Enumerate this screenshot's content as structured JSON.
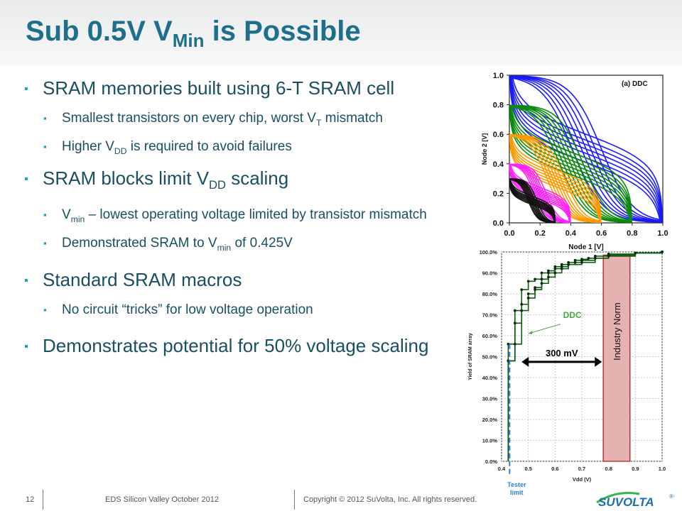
{
  "slide": {
    "title_main": "Sub 0.5V V",
    "title_sub": "Min",
    "title_end": " is Possible"
  },
  "bullets": [
    {
      "level": 1,
      "parts": [
        {
          "t": "SRAM memories built using 6-T SRAM cell"
        }
      ]
    },
    {
      "level": 2,
      "parts": [
        {
          "t": "Smallest transistors on every chip, worst V"
        },
        {
          "t": "T",
          "sub": true
        },
        {
          "t": " mismatch"
        }
      ]
    },
    {
      "level": 2,
      "parts": [
        {
          "t": "Higher V"
        },
        {
          "t": "DD",
          "sub": true
        },
        {
          "t": " is required to avoid failures"
        }
      ]
    },
    {
      "level": 1,
      "parts": [
        {
          "t": "SRAM blocks limit V"
        },
        {
          "t": "DD",
          "sub": true
        },
        {
          "t": " scaling"
        }
      ]
    },
    {
      "level": 2,
      "parts": [
        {
          "t": "V"
        },
        {
          "t": "min",
          "sub": true
        },
        {
          "t": " – lowest operating voltage limited by transistor mismatch"
        }
      ]
    },
    {
      "level": 2,
      "parts": [
        {
          "t": "Demonstrated SRAM to V"
        },
        {
          "t": "min",
          "sub": true
        },
        {
          "t": " of 0.425V"
        }
      ]
    },
    {
      "level": 1,
      "parts": [
        {
          "t": "Standard SRAM macros"
        }
      ]
    },
    {
      "level": 2,
      "parts": [
        {
          "t": "No circuit “tricks” for low voltage operation"
        }
      ]
    },
    {
      "level": 1,
      "parts": [
        {
          "t": "Demonstrates potential for 50% voltage scaling"
        }
      ]
    }
  ],
  "footer": {
    "page": "12",
    "event": "EDS Silicon Valley October 2012",
    "copyright": "Copyright © 2012 SuVolta, Inc. All rights reserved."
  },
  "logo": {
    "text": "SUVOLTA",
    "mark": "®"
  },
  "chart_data": [
    {
      "type": "line",
      "title": "(a) DDC",
      "xlabel": "Node 1 [V]",
      "ylabel": "Node 2 [V]",
      "xlim": [
        0,
        1.0
      ],
      "ylim": [
        0,
        1.0
      ],
      "x_ticks": [
        "0.0",
        "0.2",
        "0.4",
        "0.6",
        "0.8",
        "1.0"
      ],
      "y_ticks": [
        "0.0",
        "0.2",
        "0.4",
        "0.6",
        "0.8",
        "1.0"
      ],
      "grid": false,
      "series": [
        {
          "color": "#1a1aff",
          "vdd": 1.0
        },
        {
          "color": "#0a8a0a",
          "vdd": 0.8
        },
        {
          "color": "#ff9900",
          "vdd": 0.6
        },
        {
          "color": "#ff22ff",
          "vdd": 0.4
        },
        {
          "color": "#111111",
          "vdd": 0.3
        }
      ]
    },
    {
      "type": "line",
      "xlabel": "Vdd (V)",
      "ylabel": "Yield of SRAM array",
      "xlim": [
        0.4,
        1.0
      ],
      "ylim": [
        0,
        100
      ],
      "x_ticks": [
        "0.4",
        "0.5",
        "0.6",
        "0.7",
        "0.8",
        "0.9",
        "1.0"
      ],
      "y_ticks": [
        "0.0%",
        "10.0%",
        "20.0%",
        "30.0%",
        "40.0%",
        "50.0%",
        "60.0%",
        "70.0%",
        "80.0%",
        "90.0%",
        "100.0%"
      ],
      "grid": true,
      "series": [
        {
          "color": "#0f5c0f",
          "x": [
            0.425,
            0.45,
            0.475,
            0.5,
            0.525,
            0.55,
            0.575,
            0.6,
            0.625,
            0.65,
            0.675,
            0.7,
            0.725,
            0.75,
            0.8,
            0.9,
            1.0
          ],
          "y": [
            48,
            72,
            82,
            86,
            87,
            90,
            91,
            93,
            94,
            95,
            96,
            96.5,
            97,
            98,
            99,
            99.5,
            100
          ]
        },
        {
          "color": "#0f5c0f",
          "x": [
            0.425,
            0.45,
            0.475,
            0.5,
            0.525,
            0.55,
            0.575,
            0.6,
            0.625,
            0.65,
            0.675,
            0.7,
            0.75,
            0.8,
            0.9,
            1.0
          ],
          "y": [
            56,
            66,
            75,
            80,
            83,
            87,
            90,
            92,
            93,
            94,
            95,
            96,
            97,
            98.5,
            99.5,
            100
          ]
        },
        {
          "color": "#0f5c0f",
          "x": [
            0.425,
            0.45,
            0.475,
            0.5,
            0.525,
            0.55,
            0.575,
            0.6,
            0.625,
            0.65,
            0.7,
            0.75,
            0.8,
            0.9,
            1.0
          ],
          "y": [
            48,
            56,
            72,
            78,
            82,
            85,
            88,
            90,
            92,
            94,
            95,
            97,
            98,
            99.5,
            100
          ]
        }
      ],
      "annotations": [
        {
          "text": "DDC",
          "color": "#48a63e"
        },
        {
          "text": "300 mV",
          "from_x": 0.475,
          "to_x": 0.775
        },
        {
          "text": "Industry Norm",
          "x_range": [
            0.78,
            0.88
          ]
        },
        {
          "text": "Tester",
          "x": 0.43
        },
        {
          "text": "limit",
          "x": 0.43
        }
      ]
    }
  ]
}
